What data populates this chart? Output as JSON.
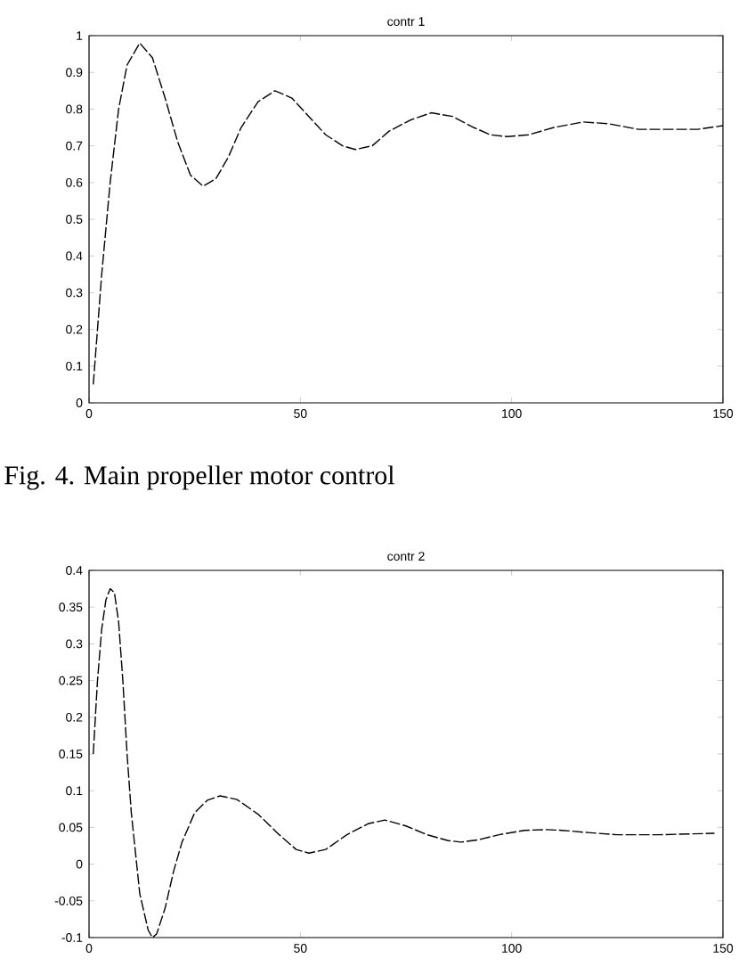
{
  "chart_data": [
    {
      "type": "line",
      "title": "contr 1",
      "color": "#000000",
      "line_style": "dashed",
      "xlim": [
        0,
        150
      ],
      "ylim": [
        0,
        1
      ],
      "xticks": [
        0,
        50,
        100,
        150
      ],
      "yticks": [
        0,
        0.1,
        0.2,
        0.3,
        0.4,
        0.5,
        0.6,
        0.7,
        0.8,
        0.9,
        1
      ],
      "x": [
        1,
        3,
        5,
        7,
        9,
        12,
        15,
        18,
        21,
        24,
        27,
        30,
        33,
        36,
        40,
        44,
        48,
        52,
        56,
        60,
        63,
        67,
        71,
        76,
        81,
        86,
        91,
        95,
        99,
        104,
        110,
        117,
        123,
        130,
        137,
        144,
        150
      ],
      "values": [
        0.05,
        0.35,
        0.6,
        0.8,
        0.92,
        0.98,
        0.94,
        0.83,
        0.71,
        0.62,
        0.59,
        0.61,
        0.67,
        0.75,
        0.82,
        0.85,
        0.83,
        0.78,
        0.73,
        0.7,
        0.69,
        0.7,
        0.74,
        0.77,
        0.79,
        0.78,
        0.75,
        0.73,
        0.725,
        0.73,
        0.75,
        0.765,
        0.76,
        0.745,
        0.745,
        0.745,
        0.755
      ],
      "annotations": [
        "Fig. 4. Main propeller motor control"
      ]
    },
    {
      "type": "line",
      "title": "contr 2",
      "color": "#000000",
      "line_style": "dashed",
      "xlim": [
        0,
        150
      ],
      "ylim": [
        -0.1,
        0.4
      ],
      "xticks": [
        0,
        50,
        100,
        150
      ],
      "yticks": [
        -0.1,
        -0.05,
        0,
        0.05,
        0.1,
        0.15,
        0.2,
        0.25,
        0.3,
        0.35,
        0.4
      ],
      "x": [
        1,
        2,
        3,
        4,
        5,
        6,
        7,
        8,
        9,
        10,
        12,
        14,
        15,
        16,
        18,
        20,
        22,
        25,
        28,
        31,
        35,
        40,
        45,
        49,
        52,
        56,
        61,
        66,
        70,
        75,
        80,
        85,
        88,
        92,
        97,
        103,
        108,
        112,
        118,
        125,
        135,
        148
      ],
      "values": [
        0.15,
        0.25,
        0.32,
        0.36,
        0.375,
        0.37,
        0.33,
        0.25,
        0.15,
        0.07,
        -0.04,
        -0.09,
        -0.1,
        -0.095,
        -0.06,
        -0.01,
        0.03,
        0.07,
        0.087,
        0.093,
        0.088,
        0.068,
        0.04,
        0.02,
        0.015,
        0.02,
        0.04,
        0.055,
        0.06,
        0.052,
        0.04,
        0.032,
        0.03,
        0.033,
        0.04,
        0.046,
        0.047,
        0.046,
        0.043,
        0.04,
        0.04,
        0.042
      ]
    }
  ]
}
